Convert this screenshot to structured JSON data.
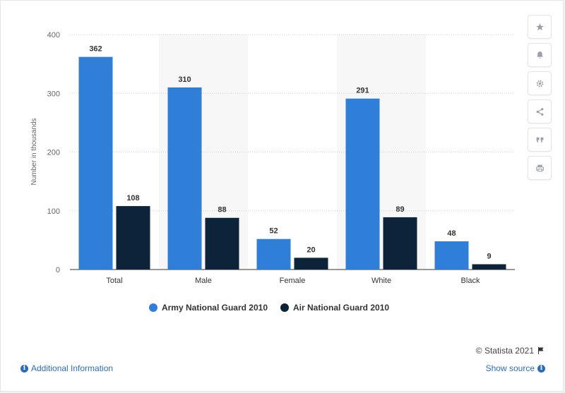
{
  "chart_data": {
    "type": "bar",
    "categories": [
      "Total",
      "Male",
      "Female",
      "White",
      "Black"
    ],
    "series": [
      {
        "name": "Army National Guard 2010",
        "values": [
          362,
          310,
          52,
          291,
          48
        ],
        "color": "#2f7ed8"
      },
      {
        "name": "Air National Guard 2010",
        "values": [
          108,
          88,
          20,
          89,
          9
        ],
        "color": "#0d233a"
      }
    ],
    "ylabel": "Number in thousands",
    "ylim": [
      0,
      400
    ],
    "yticks": [
      0,
      100,
      200,
      300,
      400
    ],
    "grid": true,
    "legend_position": "bottom"
  },
  "colors": {
    "accent": "#2a6ebb",
    "band": "#f7f7f7"
  },
  "legend": {
    "army_label": "Army National Guard 2010",
    "air_label": "Air National Guard 2010"
  },
  "toolbar": {
    "icons": [
      "star-icon",
      "bell-icon",
      "gear-icon",
      "share-icon",
      "quote-icon",
      "print-icon"
    ]
  },
  "footer": {
    "credit": "© Statista 2021",
    "additional_info": "Additional Information",
    "show_source": "Show source"
  }
}
